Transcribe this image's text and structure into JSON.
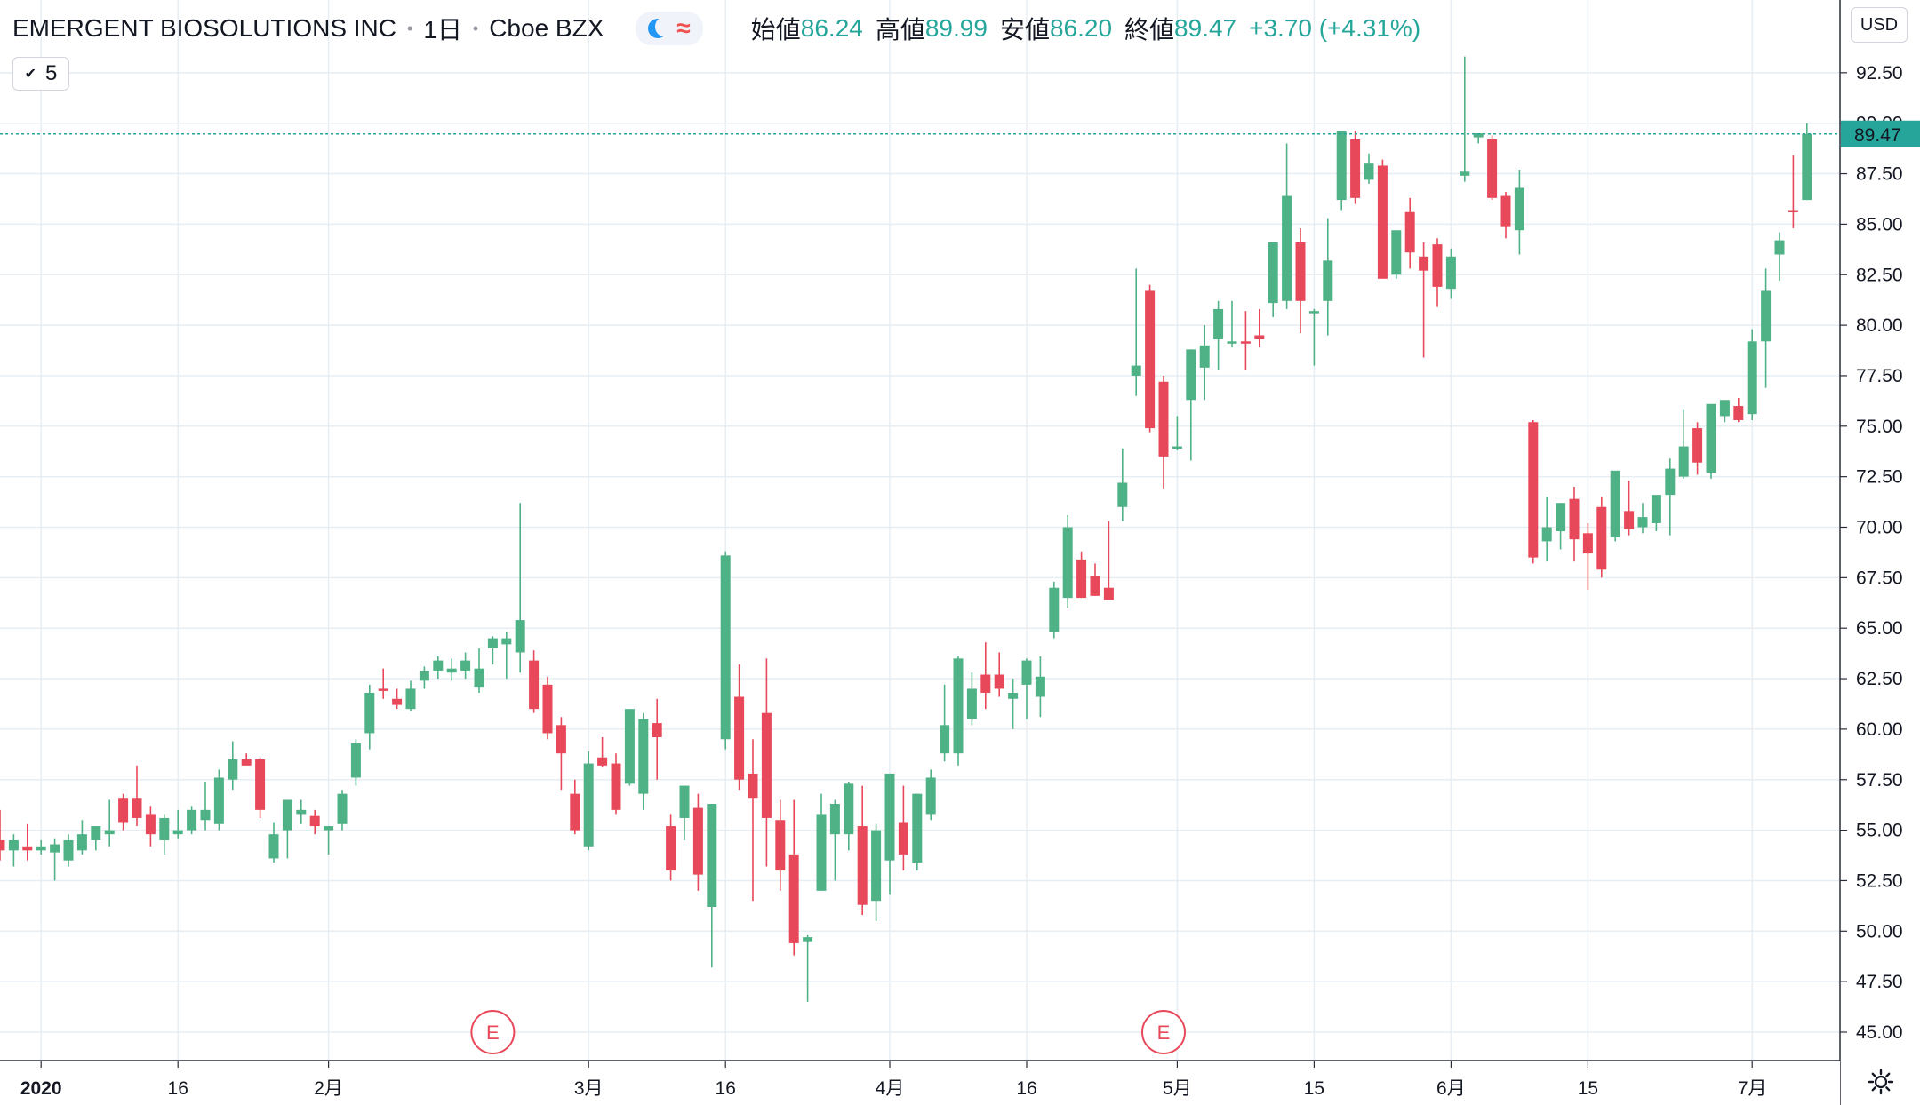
{
  "header": {
    "symbol": "EMERGENT BIOSOLUTIONS INC",
    "interval": "1日",
    "exchange": "Cboe BZX",
    "open_label": "始値",
    "open_value": "86.24",
    "high_label": "高値",
    "high_value": "89.99",
    "low_label": "安値",
    "low_value": "86.20",
    "close_label": "終値",
    "close_value": "89.47",
    "change": "+3.70 (+4.31%)",
    "market_status_icon": "moon-icon",
    "indicator_icon": "wave-icon"
  },
  "controls": {
    "interval_button": "5",
    "currency_button": "USD",
    "settings_icon": "gear-icon"
  },
  "colors": {
    "up": "#4fb286",
    "down": "#e8495a",
    "grid": "#e6eef3",
    "last_price_line": "#26a69a",
    "earnings": "#e8495a"
  },
  "chart_data": {
    "type": "candlestick",
    "ylim": [
      45.0,
      93.5
    ],
    "y_ticks": [
      "92.50",
      "90.00",
      "87.50",
      "85.00",
      "82.50",
      "80.00",
      "77.50",
      "75.00",
      "72.50",
      "70.00",
      "67.50",
      "65.00",
      "62.50",
      "60.00",
      "57.50",
      "55.00",
      "52.50",
      "50.00",
      "47.50",
      "45.00"
    ],
    "x_ticks": [
      {
        "label": "2020",
        "index": 3,
        "bold": true
      },
      {
        "label": "16",
        "index": 13
      },
      {
        "label": "2月",
        "index": 24
      },
      {
        "label": "3月",
        "index": 43
      },
      {
        "label": "16",
        "index": 53
      },
      {
        "label": "4月",
        "index": 65
      },
      {
        "label": "16",
        "index": 75
      },
      {
        "label": "5月",
        "index": 86
      },
      {
        "label": "15",
        "index": 96
      },
      {
        "label": "6月",
        "index": 106
      },
      {
        "label": "15",
        "index": 116
      },
      {
        "label": "7月",
        "index": 128
      }
    ],
    "last_price": "89.47",
    "earnings_markers": [
      {
        "label": "E",
        "index": 36
      },
      {
        "label": "E",
        "index": 85
      }
    ],
    "candles": [
      [
        54.5,
        56.0,
        53.5,
        54.0
      ],
      [
        54.0,
        54.8,
        53.2,
        54.5
      ],
      [
        54.2,
        55.3,
        53.5,
        54.0
      ],
      [
        54.0,
        54.5,
        53.8,
        54.2
      ],
      [
        53.9,
        54.6,
        52.5,
        54.3
      ],
      [
        53.5,
        54.8,
        53.2,
        54.5
      ],
      [
        54.0,
        55.5,
        53.8,
        54.8
      ],
      [
        54.5,
        55.2,
        54.0,
        55.2
      ],
      [
        54.8,
        56.5,
        54.2,
        55.0
      ],
      [
        56.6,
        56.8,
        55.0,
        55.4
      ],
      [
        56.6,
        58.2,
        55.2,
        55.6
      ],
      [
        55.8,
        56.2,
        54.2,
        54.8
      ],
      [
        54.5,
        55.8,
        53.8,
        55.6
      ],
      [
        54.8,
        56.0,
        54.6,
        55.0
      ],
      [
        55.0,
        56.2,
        54.8,
        56.0
      ],
      [
        55.5,
        57.4,
        55.0,
        56.0
      ],
      [
        55.3,
        58.0,
        55.0,
        57.6
      ],
      [
        57.5,
        59.4,
        57.0,
        58.5
      ],
      [
        58.5,
        58.8,
        58.2,
        58.2
      ],
      [
        58.5,
        58.6,
        55.6,
        56.0
      ],
      [
        53.6,
        55.4,
        53.4,
        54.8
      ],
      [
        55.0,
        56.3,
        53.6,
        56.5
      ],
      [
        55.8,
        56.5,
        55.3,
        56.0
      ],
      [
        55.7,
        56.0,
        54.8,
        55.2
      ],
      [
        55.0,
        55.2,
        53.8,
        55.2
      ],
      [
        55.3,
        57.0,
        55.0,
        56.8
      ],
      [
        57.6,
        59.5,
        57.2,
        59.3
      ],
      [
        59.8,
        62.2,
        59.0,
        61.8
      ],
      [
        62.0,
        63.0,
        61.5,
        61.9
      ],
      [
        61.5,
        62.0,
        61.0,
        61.2
      ],
      [
        61.0,
        62.4,
        60.9,
        62.0
      ],
      [
        62.4,
        63.1,
        62.0,
        62.9
      ],
      [
        62.9,
        63.6,
        62.5,
        63.4
      ],
      [
        62.8,
        63.5,
        62.4,
        63.0
      ],
      [
        62.9,
        63.8,
        62.5,
        63.4
      ],
      [
        62.1,
        64.0,
        61.8,
        63.0
      ],
      [
        64.0,
        64.6,
        63.2,
        64.5
      ],
      [
        64.2,
        64.8,
        62.5,
        64.5
      ],
      [
        63.8,
        71.2,
        62.8,
        65.4
      ],
      [
        63.4,
        63.9,
        60.8,
        61.0
      ],
      [
        62.2,
        62.6,
        59.5,
        59.8
      ],
      [
        60.2,
        60.6,
        57.0,
        58.8
      ],
      [
        56.8,
        57.5,
        54.8,
        55.0
      ],
      [
        54.2,
        58.9,
        54.0,
        58.3
      ],
      [
        58.6,
        59.6,
        58.1,
        58.2
      ],
      [
        58.3,
        58.8,
        55.8,
        56.0
      ],
      [
        57.3,
        60.8,
        57.2,
        61.0
      ],
      [
        56.8,
        60.8,
        56.0,
        60.5
      ],
      [
        60.3,
        61.5,
        57.5,
        59.6
      ],
      [
        55.2,
        55.8,
        52.5,
        53.0
      ],
      [
        55.6,
        57.2,
        54.5,
        57.2
      ],
      [
        56.1,
        56.8,
        52.0,
        52.8
      ],
      [
        51.2,
        56.3,
        48.2,
        56.3
      ],
      [
        59.5,
        68.8,
        59.0,
        68.6
      ],
      [
        61.6,
        63.2,
        57.0,
        57.5
      ],
      [
        57.8,
        59.5,
        51.5,
        56.6
      ],
      [
        60.8,
        63.5,
        53.2,
        55.6
      ],
      [
        55.5,
        56.5,
        52.0,
        53.0
      ],
      [
        53.8,
        56.5,
        48.8,
        49.4
      ],
      [
        49.5,
        49.8,
        46.5,
        49.7
      ],
      [
        52.0,
        56.8,
        52.0,
        55.8
      ],
      [
        54.8,
        56.5,
        52.5,
        56.3
      ],
      [
        54.8,
        57.4,
        54.0,
        57.3
      ],
      [
        55.2,
        57.2,
        50.8,
        51.3
      ],
      [
        51.5,
        55.3,
        50.5,
        55.0
      ],
      [
        53.5,
        57.8,
        51.8,
        57.8
      ],
      [
        55.4,
        57.2,
        53.0,
        53.8
      ],
      [
        53.4,
        56.8,
        53.0,
        56.8
      ],
      [
        55.8,
        58.0,
        55.5,
        57.6
      ],
      [
        58.8,
        62.2,
        58.4,
        60.2
      ],
      [
        58.8,
        63.6,
        58.2,
        63.5
      ],
      [
        60.5,
        62.8,
        60.2,
        62.0
      ],
      [
        62.7,
        64.3,
        61.0,
        61.8
      ],
      [
        62.7,
        63.8,
        61.6,
        62.0
      ],
      [
        61.5,
        62.5,
        60.0,
        61.8
      ],
      [
        62.2,
        63.5,
        60.5,
        63.4
      ],
      [
        61.6,
        63.6,
        60.6,
        62.6
      ],
      [
        64.8,
        67.3,
        64.5,
        67.0
      ],
      [
        66.5,
        70.6,
        66.0,
        70.0
      ],
      [
        68.4,
        68.8,
        66.5,
        66.5
      ],
      [
        67.6,
        68.2,
        66.6,
        66.6
      ],
      [
        67.0,
        70.3,
        66.5,
        66.4
      ],
      [
        71.0,
        73.9,
        70.3,
        72.2
      ],
      [
        77.5,
        82.8,
        76.5,
        78.0
      ],
      [
        81.7,
        82.0,
        74.7,
        74.9
      ],
      [
        77.2,
        77.5,
        71.9,
        73.5
      ],
      [
        73.9,
        75.5,
        73.8,
        74.0
      ],
      [
        76.3,
        78.8,
        73.3,
        78.8
      ],
      [
        77.9,
        80.0,
        76.3,
        79.0
      ],
      [
        79.3,
        81.2,
        77.8,
        80.8
      ],
      [
        79.2,
        81.2,
        78.9,
        79.2
      ],
      [
        79.2,
        80.7,
        77.8,
        79.1
      ],
      [
        79.5,
        80.8,
        78.9,
        79.3
      ],
      [
        81.1,
        84.1,
        80.4,
        84.1
      ],
      [
        81.2,
        89.0,
        80.8,
        86.4
      ],
      [
        84.1,
        84.8,
        79.6,
        81.2
      ],
      [
        80.7,
        80.8,
        78.0,
        80.7
      ],
      [
        81.2,
        85.3,
        79.5,
        83.2
      ],
      [
        86.2,
        89.2,
        85.7,
        89.6
      ],
      [
        89.2,
        89.6,
        86.0,
        86.3
      ],
      [
        87.2,
        88.5,
        87.0,
        88.0
      ],
      [
        87.9,
        88.2,
        82.4,
        82.3
      ],
      [
        82.5,
        84.6,
        82.3,
        84.7
      ],
      [
        85.6,
        86.3,
        82.8,
        83.6
      ],
      [
        83.4,
        84.1,
        78.4,
        82.7
      ],
      [
        84.0,
        84.3,
        80.9,
        81.9
      ],
      [
        81.8,
        83.8,
        81.3,
        83.4
      ],
      [
        87.4,
        93.3,
        87.1,
        87.6
      ],
      [
        89.3,
        89.5,
        89.0,
        89.5
      ],
      [
        89.2,
        89.4,
        86.2,
        86.3
      ],
      [
        86.4,
        86.6,
        84.3,
        84.9
      ],
      [
        84.7,
        87.7,
        83.5,
        86.8
      ],
      [
        75.2,
        75.3,
        68.2,
        68.5
      ],
      [
        69.3,
        71.5,
        68.3,
        70.0
      ],
      [
        69.8,
        71.2,
        68.9,
        71.2
      ],
      [
        71.4,
        72.0,
        68.3,
        69.4
      ],
      [
        69.7,
        70.2,
        66.9,
        68.7
      ],
      [
        71.0,
        71.5,
        67.5,
        67.9
      ],
      [
        69.5,
        72.6,
        69.3,
        72.8
      ],
      [
        70.8,
        72.3,
        69.6,
        69.9
      ],
      [
        70.0,
        71.2,
        69.7,
        70.5
      ],
      [
        70.2,
        71.2,
        69.8,
        71.6
      ],
      [
        71.6,
        73.4,
        69.6,
        72.9
      ],
      [
        72.5,
        75.8,
        72.4,
        74.0
      ],
      [
        74.9,
        75.2,
        72.6,
        73.2
      ],
      [
        72.7,
        75.8,
        72.4,
        76.1
      ],
      [
        75.5,
        76.2,
        75.2,
        76.3
      ],
      [
        76.0,
        76.4,
        75.2,
        75.3
      ],
      [
        75.6,
        79.8,
        75.3,
        79.2
      ],
      [
        79.2,
        82.8,
        76.9,
        81.7
      ],
      [
        83.5,
        84.6,
        82.2,
        84.2
      ],
      [
        85.7,
        88.4,
        84.8,
        85.6
      ],
      [
        86.2,
        89.99,
        86.2,
        89.47
      ]
    ]
  }
}
